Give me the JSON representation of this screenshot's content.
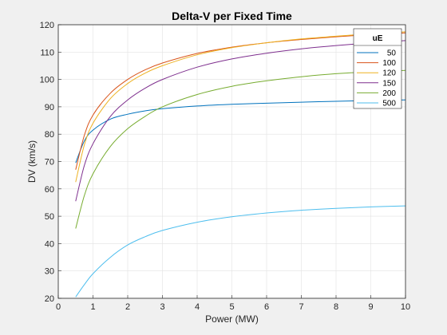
{
  "chart_data": {
    "type": "line",
    "title": "Delta-V per Fixed Time",
    "xlabel": "Power (MW)",
    "ylabel": "DV (km/s)",
    "xlim": [
      0,
      10
    ],
    "ylim": [
      20,
      120
    ],
    "xticks": [
      0,
      1,
      2,
      3,
      4,
      5,
      6,
      7,
      8,
      9,
      10
    ],
    "yticks": [
      20,
      30,
      40,
      50,
      60,
      70,
      80,
      90,
      100,
      110,
      120
    ],
    "grid": true,
    "legend": {
      "title": "uE",
      "placement": "top-right"
    },
    "x": [
      0.5,
      0.75,
      1,
      1.5,
      2,
      2.5,
      3,
      4,
      5,
      6,
      7,
      8,
      9,
      10
    ],
    "series": [
      {
        "name": "50",
        "color": "#0072bd",
        "values": [
          69.5,
          77.5,
          81.5,
          85.5,
          87.3,
          88.5,
          89.3,
          90.3,
          90.9,
          91.3,
          91.7,
          92.0,
          92.3,
          92.5
        ]
      },
      {
        "name": "100",
        "color": "#d95319",
        "values": [
          67.0,
          79.5,
          87.0,
          95.0,
          100.0,
          103.5,
          106.0,
          109.5,
          111.8,
          113.4,
          114.6,
          115.6,
          116.4,
          117.0
        ]
      },
      {
        "name": "120",
        "color": "#edb120",
        "values": [
          62.5,
          76.0,
          84.0,
          93.0,
          98.5,
          102.3,
          105.0,
          109.0,
          111.6,
          113.4,
          114.8,
          115.8,
          116.7,
          117.4
        ]
      },
      {
        "name": "150",
        "color": "#7e2f8e",
        "values": [
          55.5,
          68.5,
          76.5,
          86.5,
          92.5,
          96.8,
          100.0,
          104.5,
          107.5,
          109.6,
          111.2,
          112.4,
          113.4,
          114.2
        ]
      },
      {
        "name": "200",
        "color": "#77ac30",
        "values": [
          45.5,
          57.5,
          65.5,
          75.5,
          82.0,
          86.5,
          90.0,
          94.5,
          97.5,
          99.5,
          101.0,
          102.1,
          102.8,
          103.3
        ]
      },
      {
        "name": "500",
        "color": "#4dbeee",
        "values": [
          20.5,
          25.0,
          29.0,
          35.0,
          39.5,
          42.5,
          44.8,
          47.8,
          49.8,
          51.2,
          52.2,
          52.9,
          53.4,
          53.8
        ]
      }
    ]
  }
}
